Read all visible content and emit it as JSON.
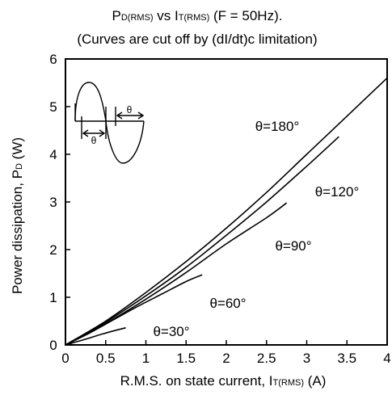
{
  "chart_data": {
    "type": "line",
    "title": {
      "line1": [
        {
          "text": "P",
          "sub": false
        },
        {
          "text": "D(RMS)",
          "sub": true
        },
        {
          "text": " vs I",
          "sub": false
        },
        {
          "text": "T(RMS)",
          "sub": true
        },
        {
          "text": " (F = 50Hz).",
          "sub": false
        }
      ],
      "line2": "(Curves are cut off by (dI/dt)c limitation)"
    },
    "xlabel": [
      {
        "text": "R.M.S. on state current, I",
        "sub": false
      },
      {
        "text": "T(RMS)",
        "sub": true
      },
      {
        "text": " (A)",
        "sub": false
      }
    ],
    "ylabel": [
      {
        "text": "Power dissipation, P",
        "sub": false
      },
      {
        "text": "D",
        "sub": true
      },
      {
        "text": " (W)",
        "sub": false
      }
    ],
    "xlim": [
      0,
      4
    ],
    "ylim": [
      0,
      6
    ],
    "xticks": [
      "0",
      "0.5",
      "1",
      "1.5",
      "2",
      "2.5",
      "3",
      "3.5",
      "4"
    ],
    "yticks": [
      "0",
      "1",
      "2",
      "3",
      "4",
      "5",
      "6"
    ],
    "grid": false,
    "line_color": "#000000",
    "inset": {
      "theta_label": "θ"
    },
    "series": [
      {
        "name": "θ=180°",
        "x": [
          0,
          0.5,
          1,
          1.5,
          2,
          2.5,
          3,
          3.5,
          4
        ],
        "y": [
          0,
          0.5,
          1.1,
          1.75,
          2.45,
          3.2,
          4.0,
          4.8,
          5.6
        ]
      },
      {
        "name": "θ=120°",
        "x": [
          0,
          0.5,
          1,
          1.5,
          2,
          2.5,
          3,
          3.4
        ],
        "y": [
          0,
          0.48,
          1.03,
          1.63,
          2.3,
          3.0,
          3.75,
          4.37
        ]
      },
      {
        "name": "θ=90°",
        "x": [
          0,
          0.5,
          1,
          1.5,
          2,
          2.5,
          2.75
        ],
        "y": [
          0,
          0.45,
          0.96,
          1.52,
          2.12,
          2.67,
          2.98
        ]
      },
      {
        "name": "θ=60°",
        "x": [
          0,
          0.3,
          0.6,
          0.9,
          1.2,
          1.5,
          1.7
        ],
        "y": [
          0,
          0.25,
          0.53,
          0.81,
          1.07,
          1.33,
          1.47
        ]
      },
      {
        "name": "θ=30°",
        "x": [
          0,
          0.25,
          0.5,
          0.75
        ],
        "y": [
          0,
          0.12,
          0.25,
          0.36
        ]
      }
    ]
  }
}
